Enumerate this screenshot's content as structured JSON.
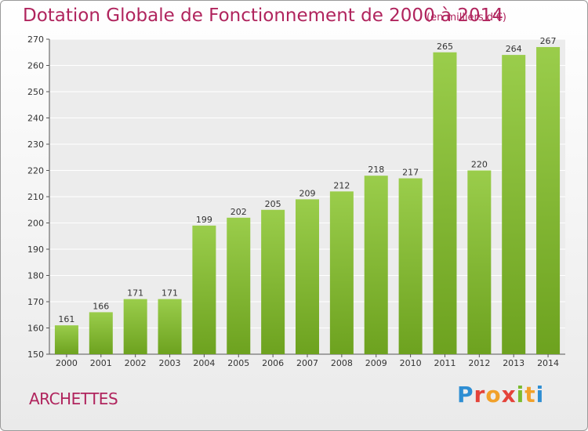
{
  "header": {
    "title": "Dotation Globale de Fonctionnement de 2000 à 2014",
    "unit": "(en milliers d'€)"
  },
  "footer": {
    "commune": "ARCHETTES",
    "logo_text": "Proxiti"
  },
  "colors": {
    "bar_light": "#9acd4b",
    "bar_dark": "#6da21f",
    "title": "#b0245d"
  },
  "chart_data": {
    "type": "bar",
    "title": "Dotation Globale de Fonctionnement de 2000 à 2014",
    "subtitle": "(en milliers d'€)",
    "categories": [
      "2000",
      "2001",
      "2002",
      "2003",
      "2004",
      "2005",
      "2006",
      "2007",
      "2008",
      "2009",
      "2010",
      "2011",
      "2012",
      "2013",
      "2014"
    ],
    "values": [
      161,
      166,
      171,
      171,
      199,
      202,
      205,
      209,
      212,
      218,
      217,
      265,
      220,
      264,
      267
    ],
    "ylim": [
      150,
      270
    ],
    "yticks": [
      150,
      160,
      170,
      180,
      190,
      200,
      210,
      220,
      230,
      240,
      250,
      260,
      270
    ],
    "grid": true,
    "xlabel": "",
    "ylabel": ""
  }
}
